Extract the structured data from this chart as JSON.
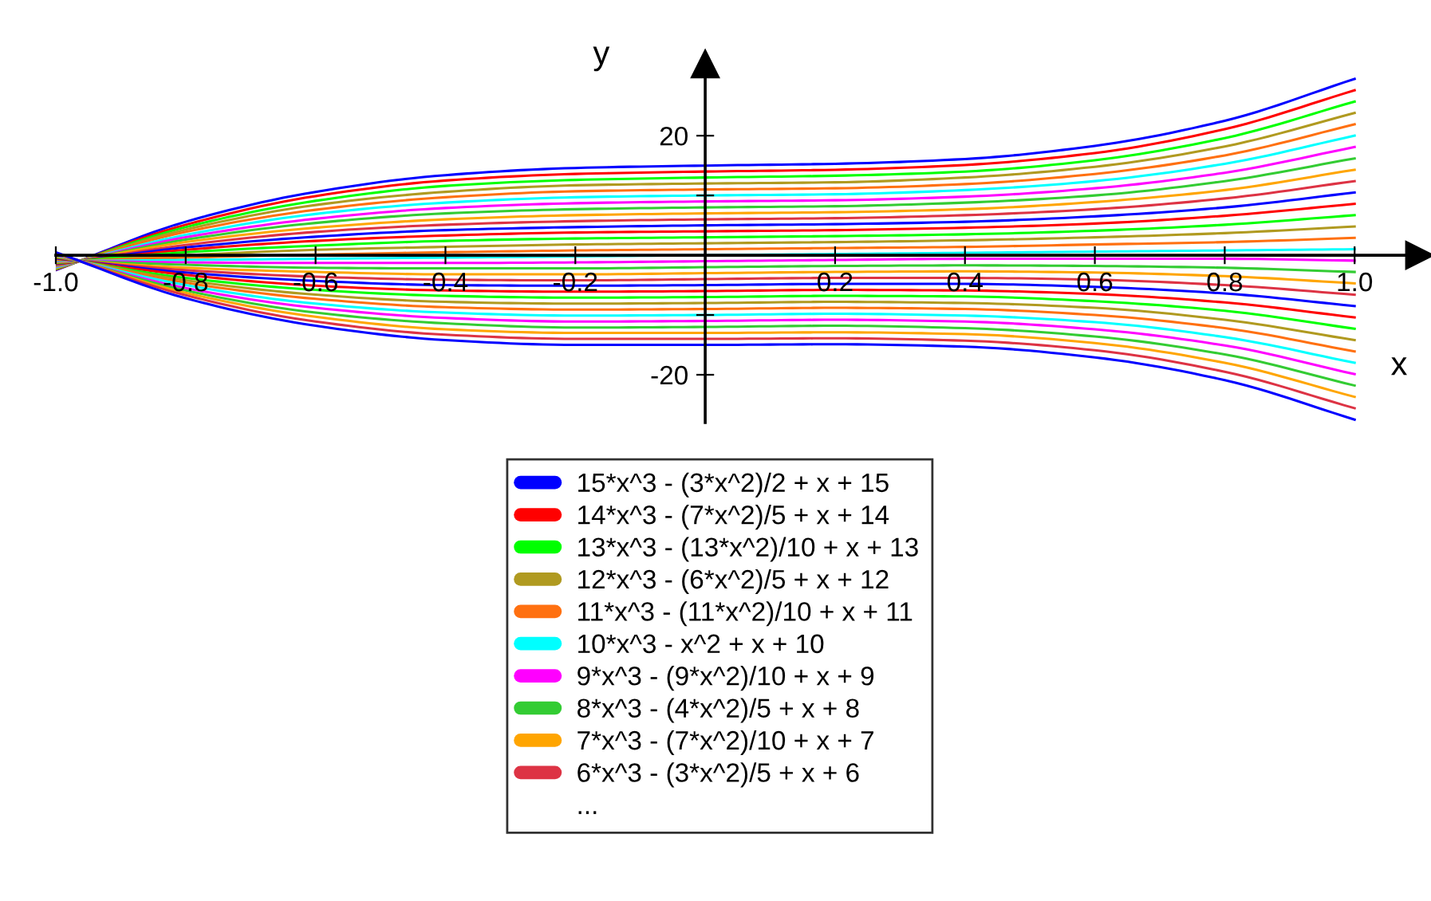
{
  "chart_data": {
    "type": "line",
    "xlabel": "x",
    "ylabel": "y",
    "x": [
      -1.0,
      -0.8,
      -0.6,
      -0.4,
      -0.2,
      0,
      0.2,
      0.4,
      0.6,
      0.8,
      1.0
    ],
    "xlim": [
      -1.0,
      1.1
    ],
    "ylim": [
      -28,
      32
    ],
    "xticks": [
      {
        "value": -1.0,
        "label": "-1.0"
      },
      {
        "value": -0.8,
        "label": "-0.8"
      },
      {
        "value": -0.6,
        "label": "-0.6"
      },
      {
        "value": -0.4,
        "label": "-0.4"
      },
      {
        "value": -0.2,
        "label": "-0.2"
      },
      {
        "value": 0.2,
        "label": "0.2"
      },
      {
        "value": 0.4,
        "label": "0.4"
      },
      {
        "value": 0.6,
        "label": "0.6"
      },
      {
        "value": 0.8,
        "label": "0.8"
      },
      {
        "value": 1.0,
        "label": "1.0"
      }
    ],
    "yticks": [
      {
        "value": -20,
        "label": "-20"
      },
      {
        "value": -10,
        "label": null
      },
      {
        "value": 10,
        "label": null
      },
      {
        "value": 20,
        "label": "20"
      }
    ],
    "marker": "none",
    "line_style": "solid",
    "legend": "bottom",
    "annotations": [
      "..."
    ],
    "series": [
      {
        "name": "15*x^3 - (3*x^2)/2 + x + 15",
        "color": "#0000ff",
        "values": [
          -2.5,
          5.6,
          10.6,
          13.4,
          14.6,
          15,
          15.3,
          16.1,
          18.3,
          22.5,
          29.5
        ]
      },
      {
        "name": "14*x^3 - (7*x^2)/5 + x + 14",
        "color": "#ff0000",
        "values": [
          -2.4,
          5.1,
          9.9,
          12.5,
          13.6,
          14,
          14.3,
          15.1,
          17.1,
          21.1,
          27.6
        ]
      },
      {
        "name": "13*x^3 - (13*x^2)/10 + x + 13",
        "color": "#00ff00",
        "values": [
          -2.3,
          4.7,
          9.1,
          11.6,
          12.6,
          13,
          13.3,
          14.0,
          15.9,
          19.6,
          25.7
        ]
      },
      {
        "name": "12*x^3 - (6*x^2)/5 + x + 12",
        "color": "#b09a20",
        "values": [
          -2.2,
          4.3,
          8.4,
          10.6,
          11.7,
          12,
          12.2,
          13.0,
          14.8,
          18.2,
          23.8
        ]
      },
      {
        "name": "11*x^3 - (11*x^2)/10 + x + 11",
        "color": "#ff7010",
        "values": [
          -2.1,
          3.9,
          7.6,
          9.7,
          10.7,
          11,
          11.2,
          11.9,
          13.6,
          16.7,
          21.9
        ]
      },
      {
        "name": "10*x^3 - x^2 + x + 10",
        "color": "#00ffff",
        "values": [
          -2,
          3.4,
          6.9,
          8.8,
          9.7,
          10,
          10.2,
          10.9,
          12.4,
          15.3,
          20
        ]
      },
      {
        "name": "9*x^3 - (9*x^2)/10 + x + 9",
        "color": "#ff00ff",
        "values": [
          -1.9,
          3.0,
          6.1,
          7.9,
          8.7,
          9,
          9.2,
          9.8,
          11.2,
          13.8,
          18.1
        ]
      },
      {
        "name": "8*x^3 - (4*x^2)/5 + x + 8",
        "color": "#33cc33",
        "values": [
          -1.8,
          2.6,
          5.4,
          7.0,
          7.7,
          8,
          8.2,
          8.8,
          10.0,
          12.4,
          16.2
        ]
      },
      {
        "name": "7*x^3 - (7*x^2)/10 + x + 7",
        "color": "#ffa500",
        "values": [
          -1.7,
          2.2,
          4.6,
          6.0,
          6.7,
          7,
          7.2,
          7.7,
          8.9,
          10.9,
          14.3
        ]
      },
      {
        "name": "6*x^3 - (3*x^2)/5 + x + 6",
        "color": "#dd3344",
        "values": [
          -1.6,
          1.7,
          3.9,
          5.1,
          5.7,
          6,
          6.2,
          6.7,
          7.7,
          9.5,
          12.4
        ]
      },
      {
        "color": "#0000ff",
        "values": [
          -1.5,
          1.3,
          3.1,
          4.2,
          4.7,
          5,
          5.2,
          5.6,
          6.5,
          8.0,
          10.5
        ]
      },
      {
        "color": "#ff0000",
        "values": [
          -1.4,
          0.9,
          2.4,
          3.3,
          3.8,
          4,
          4.2,
          4.6,
          5.3,
          6.6,
          8.6
        ]
      },
      {
        "color": "#00ff00",
        "values": [
          -1.3,
          0.5,
          1.6,
          2.4,
          2.8,
          3,
          3.2,
          3.5,
          4.1,
          5.1,
          6.7
        ]
      },
      {
        "color": "#b09a20",
        "values": [
          -1.2,
          0.0,
          0.9,
          1.4,
          1.8,
          2,
          2.2,
          2.5,
          3.0,
          3.7,
          4.8
        ]
      },
      {
        "color": "#ff7010",
        "values": [
          -1.1,
          -0.4,
          0.1,
          0.5,
          0.8,
          1,
          1.2,
          1.4,
          1.8,
          2.2,
          2.9
        ]
      },
      {
        "color": "#00ffff",
        "values": [
          -1,
          -0.8,
          -0.6,
          -0.4,
          -0.2,
          0,
          0.2,
          0.4,
          0.6,
          0.8,
          1
        ]
      },
      {
        "color": "#ff00ff",
        "values": [
          -0.9,
          -1.2,
          -1.3,
          -1.3,
          -1.2,
          -1,
          -0.8,
          -0.6,
          -0.6,
          -0.6,
          -0.9
        ]
      },
      {
        "color": "#33cc33",
        "values": [
          -0.8,
          -1.6,
          -2.1,
          -2.2,
          -2.2,
          -2,
          -1.8,
          -1.7,
          -1.8,
          -2.1,
          -2.8
        ]
      },
      {
        "color": "#ffa500",
        "values": [
          -0.7,
          -2.1,
          -2.8,
          -3.2,
          -3.2,
          -3,
          -2.8,
          -2.7,
          -2.9,
          -3.5,
          -4.7
        ]
      },
      {
        "color": "#dd3344",
        "values": [
          -0.6,
          -2.5,
          -3.6,
          -4.1,
          -4.2,
          -4,
          -3.8,
          -3.8,
          -4.1,
          -5.0,
          -6.6
        ]
      },
      {
        "color": "#0000ff",
        "values": [
          -0.5,
          -2.9,
          -4.3,
          -5.0,
          -5.1,
          -5,
          -4.8,
          -4.8,
          -5.3,
          -6.4,
          -8.5
        ]
      },
      {
        "color": "#ff0000",
        "values": [
          -0.4,
          -3.3,
          -5.1,
          -5.9,
          -6.1,
          -6,
          -5.8,
          -5.9,
          -6.5,
          -7.9,
          -10.4
        ]
      },
      {
        "color": "#00ff00",
        "values": [
          -0.3,
          -3.8,
          -5.8,
          -6.8,
          -7.1,
          -7,
          -6.8,
          -6.9,
          -7.7,
          -9.3,
          -12.3
        ]
      },
      {
        "color": "#b09a20",
        "values": [
          -0.2,
          -4.2,
          -6.6,
          -7.8,
          -8.1,
          -8,
          -7.8,
          -8.0,
          -8.8,
          -10.8,
          -14.2
        ]
      },
      {
        "color": "#ff7010",
        "values": [
          -0.1,
          -4.6,
          -7.3,
          -8.7,
          -9.1,
          -9,
          -8.8,
          -9.0,
          -10.0,
          -12.2,
          -16.1
        ]
      },
      {
        "color": "#00ffff",
        "values": [
          0,
          -5.0,
          -8.1,
          -9.6,
          -10.1,
          -10,
          -9.8,
          -10.1,
          -11.2,
          -13.7,
          -18
        ]
      },
      {
        "color": "#ff00ff",
        "values": [
          0.1,
          -5.5,
          -8.8,
          -10.5,
          -11.1,
          -11,
          -10.8,
          -11.1,
          -12.4,
          -15.1,
          -19.9
        ]
      },
      {
        "color": "#33cc33",
        "values": [
          0.2,
          -5.9,
          -9.6,
          -11.4,
          -12.1,
          -12,
          -11.8,
          -12.2,
          -13.6,
          -16.6,
          -21.8
        ]
      },
      {
        "color": "#ffa500",
        "values": [
          0.3,
          -6.3,
          -10.3,
          -12.4,
          -13.0,
          -13,
          -12.9,
          -13.2,
          -14.7,
          -18.0,
          -23.7
        ]
      },
      {
        "color": "#dd3344",
        "values": [
          0.4,
          -6.7,
          -11.1,
          -13.3,
          -14.0,
          -14,
          -13.9,
          -14.3,
          -15.9,
          -19.5,
          -25.6
        ]
      },
      {
        "color": "#0000ff",
        "values": [
          0.5,
          -7.2,
          -11.8,
          -14.2,
          -15.0,
          -15,
          -14.9,
          -15.3,
          -17.1,
          -20.9,
          -27.5
        ]
      }
    ]
  }
}
